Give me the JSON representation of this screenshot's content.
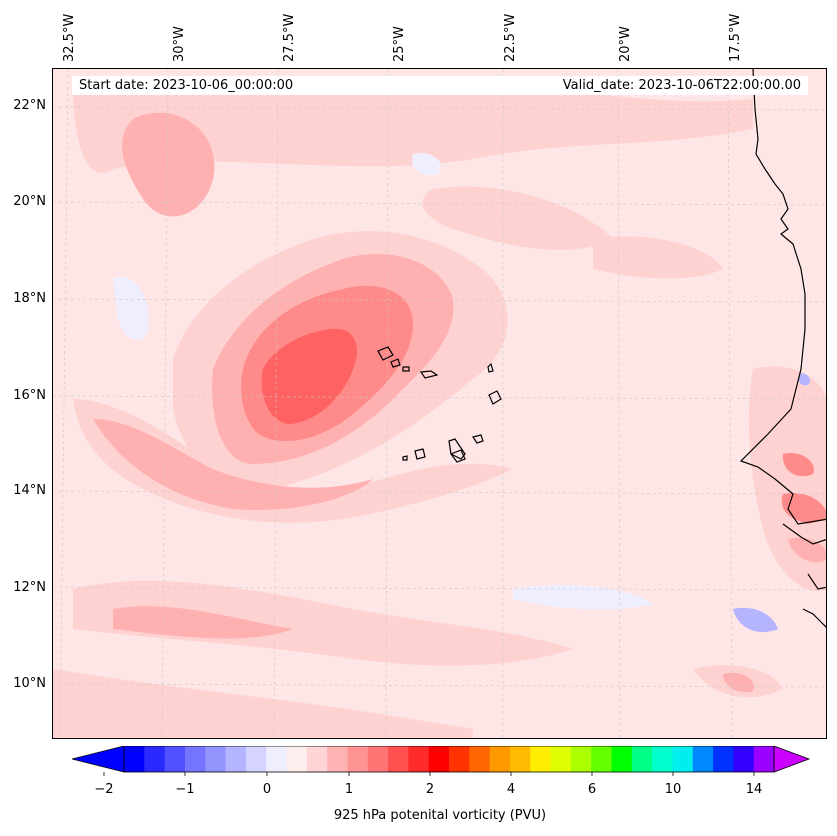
{
  "header": {
    "start_date": "Start date: 2023-10-06_00:00:00",
    "valid_date": "Valid_date: 2023-10-06T22:00:00.00"
  },
  "map": {
    "longitude_labels": [
      "32.5°W",
      "30°W",
      "27.5°W",
      "25°W",
      "22.5°W",
      "20°W",
      "17.5°W"
    ],
    "latitude_labels": [
      "22°N",
      "20°N",
      "18°N",
      "16°N",
      "14°N",
      "12°N",
      "10°N"
    ],
    "extent": {
      "lon_min": -33,
      "lon_max": -15.5,
      "lat_min": 9,
      "lat_max": 22.8
    }
  },
  "colorbar": {
    "label": "925 hPa potenital vorticity (PVU)",
    "tick_labels": [
      "−2",
      "−1",
      "0",
      "1",
      "2",
      "4",
      "6",
      "10",
      "14"
    ],
    "colors": [
      "#0000ff",
      "#2a2aff",
      "#5050ff",
      "#7474ff",
      "#9494ff",
      "#b4b4ff",
      "#d4d4ff",
      "#eeeeff",
      "#ffeeee",
      "#ffd4d4",
      "#ffb4b4",
      "#ff9494",
      "#ff7474",
      "#ff5050",
      "#ff2a2a",
      "#ff0000",
      "#ff3300",
      "#ff6600",
      "#ff9900",
      "#ffbb00",
      "#ffee00",
      "#ddff00",
      "#aaff00",
      "#66ff00",
      "#00ff00",
      "#00ff88",
      "#00ffcc",
      "#00eeee",
      "#0088ff",
      "#0033ff",
      "#3300ff",
      "#9900ff"
    ],
    "extend_low_color": "#0000ff",
    "extend_high_color": "#cc00ff"
  },
  "palette": {
    "pv_background": "#ffe6e6",
    "pv_light": "#ffd2d2",
    "pv_medium": "#ffb0b0",
    "pv_strong": "#ff8a8a",
    "pv_max": "#ff6262",
    "pv_negative": "#eeeeff",
    "pv_negative_strong": "#b4b4ff",
    "coastline": "#000000",
    "gridline": "#c8c8c8"
  }
}
